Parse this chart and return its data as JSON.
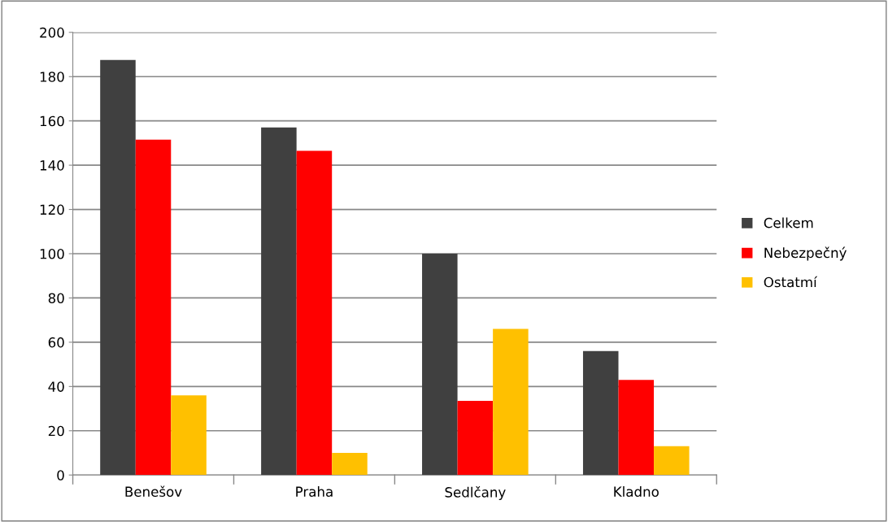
{
  "chart_data": {
    "type": "bar",
    "categories": [
      "Benešov",
      "Praha",
      "Sedlčany",
      "Kladno"
    ],
    "series": [
      {
        "name": "Celkem",
        "color": "#404040",
        "values": [
          187.5,
          157,
          100,
          56
        ]
      },
      {
        "name": "Nebezpečný",
        "color": "#ff0000",
        "values": [
          151.5,
          146.5,
          33.5,
          43
        ]
      },
      {
        "name": "Ostatmí",
        "color": "#ffc000",
        "values": [
          36,
          10,
          66,
          13
        ]
      }
    ],
    "ylim": [
      0,
      200
    ],
    "yticks": [
      0,
      20,
      40,
      60,
      80,
      100,
      120,
      140,
      160,
      180,
      200
    ],
    "grid": "y",
    "legend": "right"
  }
}
